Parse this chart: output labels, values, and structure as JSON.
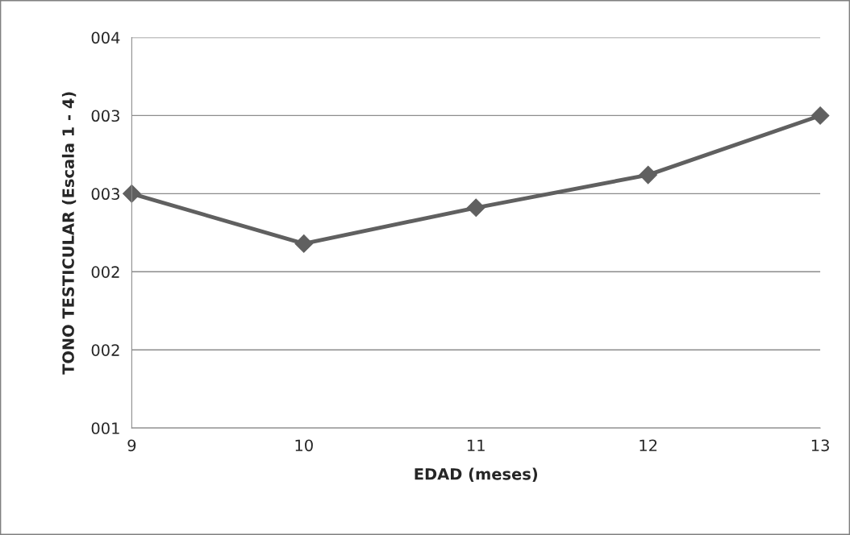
{
  "chart_data": {
    "type": "line",
    "xlabel": "EDAD (meses)",
    "ylabel": "TONO TESTICULAR (Escala 1 - 4)",
    "x": [
      9,
      10,
      11,
      12,
      13
    ],
    "series": [
      {
        "color": "#606060",
        "values": [
          2.5,
          2.18,
          2.41,
          2.62,
          3.0
        ]
      }
    ],
    "xlim": [
      9,
      13
    ],
    "xticks": [
      9,
      10,
      11,
      12,
      13
    ],
    "ylim": [
      1,
      3.5
    ],
    "yticks": [
      {
        "value": 1,
        "label": "001"
      },
      {
        "value": 1.5,
        "label": "002"
      },
      {
        "value": 2,
        "label": "002"
      },
      {
        "value": 2.5,
        "label": "003"
      },
      {
        "value": 3,
        "label": "003"
      },
      {
        "value": 3.5,
        "label": "004"
      }
    ],
    "grid": "y",
    "marker": "diamond",
    "line_style": "solid"
  }
}
